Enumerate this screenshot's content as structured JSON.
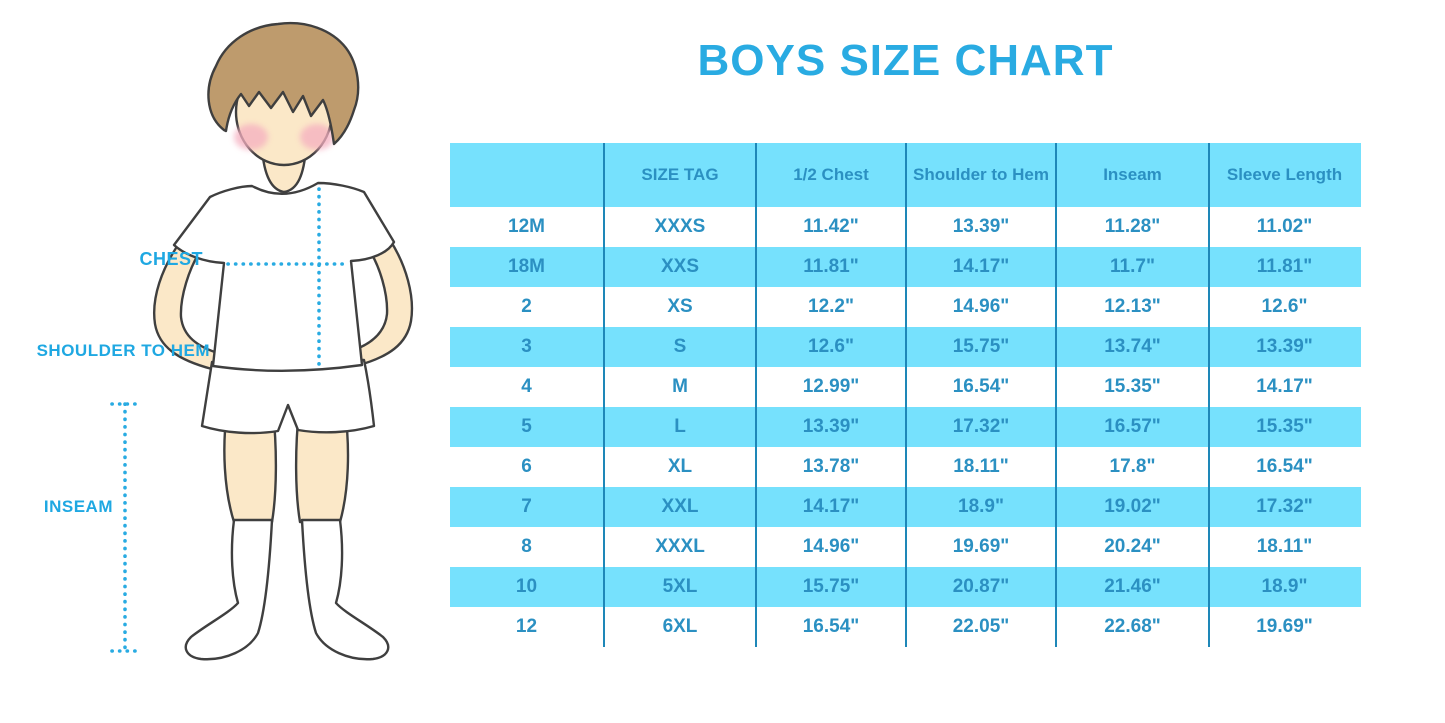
{
  "title": "BOYS SIZE CHART",
  "figure": {
    "description": "cartoon boy in white t-shirt, shorts and knee socks with dotted measurement guides",
    "labels": {
      "chest": "CHEST",
      "shoulder_to_hem": "SHOULDER TO HEM",
      "inseam": "INSEAM"
    },
    "colors": {
      "skin": "#FBE8C8",
      "hair": "#BE9B6D",
      "blush": "#F5AFC0",
      "outline": "#3F3F3F",
      "dotted_line": "#29ABE2",
      "label_text": "#1FA8E2"
    }
  },
  "chart_data": {
    "type": "table",
    "title": "BOYS SIZE CHART",
    "columns": [
      "",
      "SIZE TAG",
      "1/2 Chest",
      "Shoulder to Hem",
      "Inseam",
      "Sleeve Length"
    ],
    "rows": [
      [
        "12M",
        "XXXS",
        "11.42\"",
        "13.39\"",
        "11.28\"",
        "11.02\""
      ],
      [
        "18M",
        "XXS",
        "11.81\"",
        "14.17\"",
        "11.7\"",
        "11.81\""
      ],
      [
        "2",
        "XS",
        "12.2\"",
        "14.96\"",
        "12.13\"",
        "12.6\""
      ],
      [
        "3",
        "S",
        "12.6\"",
        "15.75\"",
        "13.74\"",
        "13.39\""
      ],
      [
        "4",
        "M",
        "12.99\"",
        "16.54\"",
        "15.35\"",
        "14.17\""
      ],
      [
        "5",
        "L",
        "13.39\"",
        "17.32\"",
        "16.57\"",
        "15.35\""
      ],
      [
        "6",
        "XL",
        "13.78\"",
        "18.11\"",
        "17.8\"",
        "16.54\""
      ],
      [
        "7",
        "XXL",
        "14.17\"",
        "18.9\"",
        "19.02\"",
        "17.32\""
      ],
      [
        "8",
        "XXXL",
        "14.96\"",
        "19.69\"",
        "20.24\"",
        "18.11\""
      ],
      [
        "10",
        "5XL",
        "15.75\"",
        "20.87\"",
        "21.46\"",
        "18.9\""
      ],
      [
        "12",
        "6XL",
        "16.54\"",
        "22.05\"",
        "22.68\"",
        "19.69\""
      ]
    ],
    "colors": {
      "band": "#76E1FD",
      "grid_line": "#1E87B8",
      "text": "#2B90C2",
      "title": "#29ABE2"
    },
    "layout": {
      "banding": "header row and alternate data rows filled light blue, others white",
      "vertical_separators": true,
      "horizontal_lines": false,
      "legend": "none",
      "grid": "off"
    }
  }
}
